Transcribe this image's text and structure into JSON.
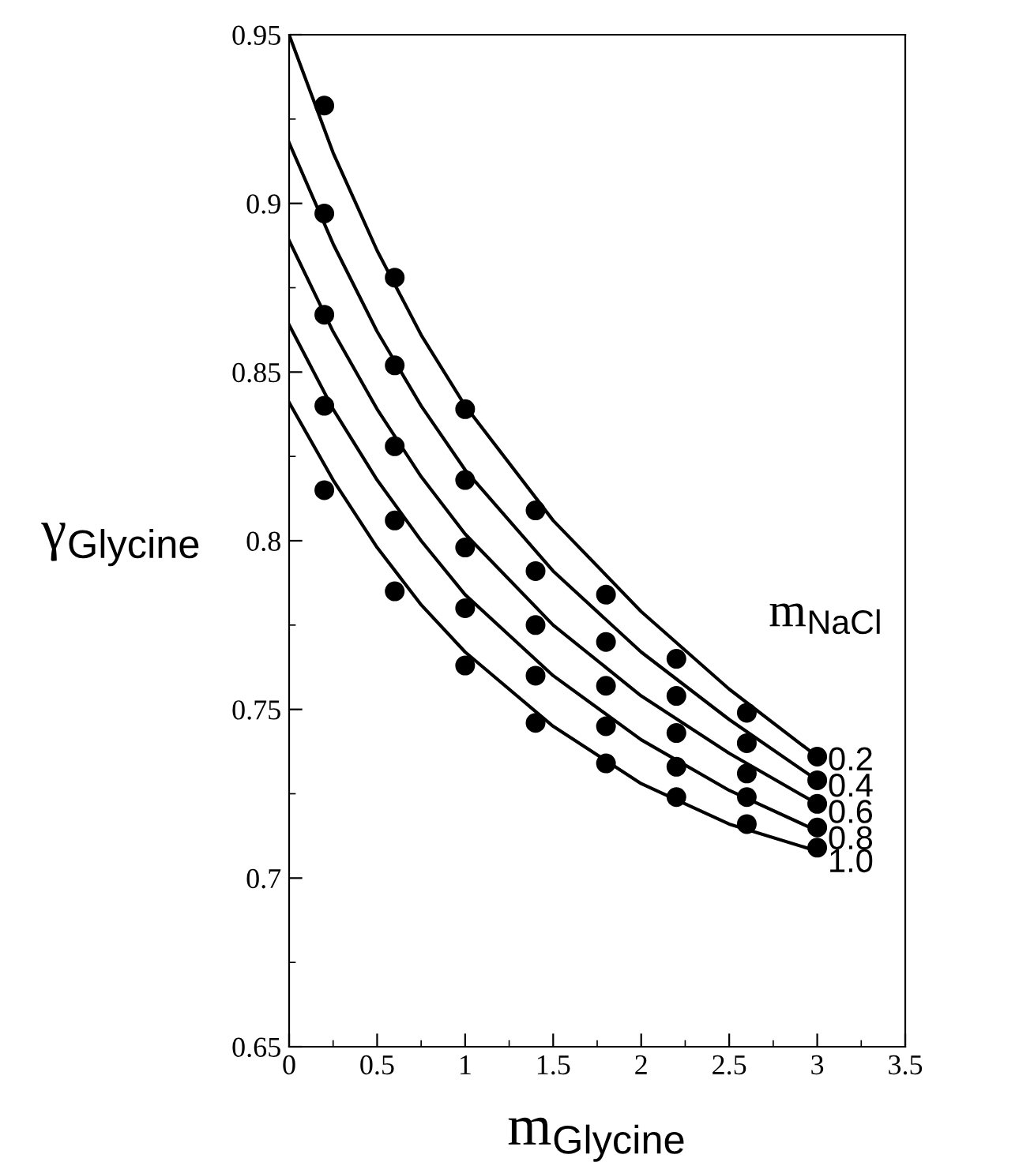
{
  "chart_data": {
    "type": "scatter",
    "xlabel": "m$_{Glycine}$",
    "ylabel": "γ$_{Glycine}$",
    "legend_title": "m$_{NaCl}$",
    "xlim": [
      0,
      3.5
    ],
    "xticks": [
      0,
      0.5,
      1,
      1.5,
      2,
      2.5,
      3,
      3.5
    ],
    "ylim": [
      0.65,
      0.95
    ],
    "yticks": [
      0.65,
      0.7,
      0.75,
      0.8,
      0.85,
      0.9,
      0.95
    ],
    "grid": false,
    "legend": false,
    "marker": "circle",
    "series": [
      {
        "name": "0.2",
        "color": "#000000",
        "x": [
          0.2,
          0.6,
          1.0,
          1.4,
          1.8,
          2.2,
          2.6,
          3.0
        ],
        "values": [
          0.929,
          0.878,
          0.839,
          0.809,
          0.784,
          0.765,
          0.749,
          0.736
        ]
      },
      {
        "name": "0.4",
        "color": "#000000",
        "x": [
          0.2,
          0.6,
          1.0,
          1.4,
          1.8,
          2.2,
          2.6,
          3.0
        ],
        "values": [
          0.897,
          0.852,
          0.818,
          0.791,
          0.77,
          0.754,
          0.74,
          0.729
        ]
      },
      {
        "name": "0.6",
        "color": "#000000",
        "x": [
          0.2,
          0.6,
          1.0,
          1.4,
          1.8,
          2.2,
          2.6,
          3.0
        ],
        "values": [
          0.867,
          0.828,
          0.798,
          0.775,
          0.757,
          0.743,
          0.731,
          0.722
        ]
      },
      {
        "name": "0.8",
        "color": "#000000",
        "x": [
          0.2,
          0.6,
          1.0,
          1.4,
          1.8,
          2.2,
          2.6,
          3.0
        ],
        "values": [
          0.84,
          0.806,
          0.78,
          0.76,
          0.745,
          0.733,
          0.724,
          0.715
        ]
      },
      {
        "name": "1.0",
        "color": "#000000",
        "x": [
          0.2,
          0.6,
          1.0,
          1.4,
          1.8,
          2.2,
          2.6,
          3.0
        ],
        "values": [
          0.815,
          0.785,
          0.763,
          0.746,
          0.734,
          0.724,
          0.716,
          0.709
        ]
      },
      {
        "type": "line",
        "color": "#000000",
        "marker": "none",
        "x": [
          0,
          0.25,
          0.5,
          0.75,
          1,
          1.5,
          2,
          2.5,
          3
        ],
        "values": [
          0.95,
          0.915,
          0.886,
          0.861,
          0.84,
          0.806,
          0.779,
          0.756,
          0.736
        ]
      },
      {
        "type": "line",
        "color": "#000000",
        "marker": "none",
        "x": [
          0,
          0.25,
          0.5,
          0.75,
          1,
          1.5,
          2,
          2.5,
          3
        ],
        "values": [
          0.918,
          0.888,
          0.862,
          0.84,
          0.821,
          0.791,
          0.767,
          0.747,
          0.729
        ]
      },
      {
        "type": "line",
        "color": "#000000",
        "marker": "none",
        "x": [
          0,
          0.25,
          0.5,
          0.75,
          1,
          1.5,
          2,
          2.5,
          3
        ],
        "values": [
          0.889,
          0.862,
          0.839,
          0.819,
          0.802,
          0.775,
          0.754,
          0.737,
          0.722
        ]
      },
      {
        "type": "line",
        "color": "#000000",
        "marker": "none",
        "x": [
          0,
          0.25,
          0.5,
          0.75,
          1,
          1.5,
          2,
          2.5,
          3
        ],
        "values": [
          0.864,
          0.839,
          0.818,
          0.8,
          0.784,
          0.76,
          0.741,
          0.726,
          0.714
        ]
      },
      {
        "type": "line",
        "color": "#000000",
        "marker": "none",
        "x": [
          0,
          0.25,
          0.5,
          0.75,
          1,
          1.5,
          2,
          2.5,
          3
        ],
        "values": [
          0.841,
          0.818,
          0.798,
          0.781,
          0.767,
          0.745,
          0.728,
          0.716,
          0.708
        ]
      }
    ]
  }
}
